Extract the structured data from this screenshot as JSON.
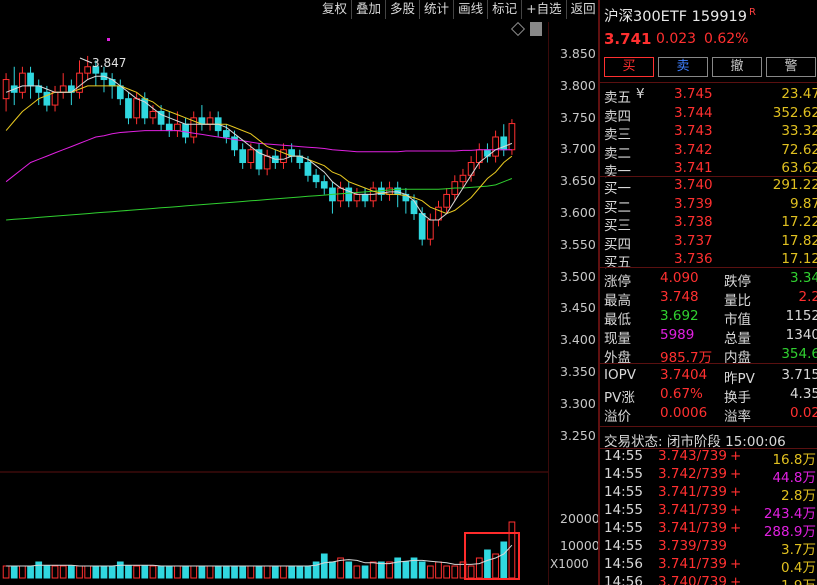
{
  "toolbar": [
    "复权",
    "叠加",
    "多股",
    "统计",
    "画线",
    "标记",
    "+自选",
    "返回"
  ],
  "chart": {
    "max_label": "3.847",
    "y_axis_labels": [
      "3.850",
      "3.800",
      "3.750",
      "3.700",
      "3.650",
      "3.600",
      "3.550",
      "3.500",
      "3.450",
      "3.400",
      "3.350",
      "3.300",
      "3.250"
    ],
    "volume_axis_labels": [
      "20000",
      "10000"
    ],
    "volume_unit": "X1000",
    "colors": {
      "up": "#ff3030",
      "down": "#30d8e0",
      "ma5": "#d8d8d8",
      "ma10": "#e8c820",
      "ma20": "#e020e0",
      "ma60": "#30d030",
      "volma": "#d8d8d8"
    }
  },
  "chart_data": {
    "type": "candlestick",
    "price_range": [
      3.22,
      3.87
    ],
    "candles": [
      [
        3.78,
        3.81,
        3.76,
        3.82
      ],
      [
        3.8,
        3.79,
        3.77,
        3.83
      ],
      [
        3.79,
        3.82,
        3.78,
        3.83
      ],
      [
        3.82,
        3.8,
        3.78,
        3.83
      ],
      [
        3.8,
        3.79,
        3.77,
        3.81
      ],
      [
        3.79,
        3.77,
        3.76,
        3.8
      ],
      [
        3.77,
        3.79,
        3.76,
        3.8
      ],
      [
        3.79,
        3.8,
        3.78,
        3.82
      ],
      [
        3.8,
        3.79,
        3.77,
        3.81
      ],
      [
        3.79,
        3.82,
        3.78,
        3.84
      ],
      [
        3.82,
        3.83,
        3.81,
        3.847
      ],
      [
        3.83,
        3.82,
        3.8,
        3.84
      ],
      [
        3.82,
        3.81,
        3.79,
        3.83
      ],
      [
        3.81,
        3.8,
        3.78,
        3.82
      ],
      [
        3.8,
        3.78,
        3.77,
        3.81
      ],
      [
        3.78,
        3.75,
        3.74,
        3.79
      ],
      [
        3.75,
        3.78,
        3.74,
        3.79
      ],
      [
        3.78,
        3.75,
        3.74,
        3.79
      ],
      [
        3.75,
        3.76,
        3.74,
        3.77
      ],
      [
        3.76,
        3.74,
        3.73,
        3.77
      ],
      [
        3.74,
        3.73,
        3.72,
        3.76
      ],
      [
        3.73,
        3.74,
        3.72,
        3.76
      ],
      [
        3.74,
        3.72,
        3.71,
        3.75
      ],
      [
        3.72,
        3.75,
        3.71,
        3.76
      ],
      [
        3.75,
        3.74,
        3.73,
        3.77
      ],
      [
        3.74,
        3.75,
        3.73,
        3.76
      ],
      [
        3.75,
        3.73,
        3.72,
        3.76
      ],
      [
        3.73,
        3.72,
        3.71,
        3.74
      ],
      [
        3.72,
        3.7,
        3.69,
        3.73
      ],
      [
        3.7,
        3.68,
        3.67,
        3.71
      ],
      [
        3.68,
        3.7,
        3.67,
        3.71
      ],
      [
        3.7,
        3.67,
        3.66,
        3.71
      ],
      [
        3.67,
        3.69,
        3.66,
        3.7
      ],
      [
        3.69,
        3.68,
        3.67,
        3.7
      ],
      [
        3.68,
        3.7,
        3.67,
        3.71
      ],
      [
        3.7,
        3.69,
        3.68,
        3.71
      ],
      [
        3.69,
        3.68,
        3.67,
        3.7
      ],
      [
        3.68,
        3.66,
        3.65,
        3.69
      ],
      [
        3.66,
        3.65,
        3.64,
        3.67
      ],
      [
        3.65,
        3.64,
        3.63,
        3.66
      ],
      [
        3.64,
        3.62,
        3.6,
        3.65
      ],
      [
        3.62,
        3.64,
        3.61,
        3.65
      ],
      [
        3.64,
        3.62,
        3.61,
        3.65
      ],
      [
        3.62,
        3.63,
        3.61,
        3.64
      ],
      [
        3.63,
        3.62,
        3.61,
        3.64
      ],
      [
        3.62,
        3.64,
        3.61,
        3.65
      ],
      [
        3.64,
        3.63,
        3.62,
        3.65
      ],
      [
        3.63,
        3.64,
        3.62,
        3.65
      ],
      [
        3.64,
        3.63,
        3.61,
        3.65
      ],
      [
        3.63,
        3.62,
        3.6,
        3.64
      ],
      [
        3.62,
        3.6,
        3.59,
        3.63
      ],
      [
        3.6,
        3.56,
        3.55,
        3.61
      ],
      [
        3.56,
        3.59,
        3.55,
        3.6
      ],
      [
        3.59,
        3.61,
        3.58,
        3.62
      ],
      [
        3.61,
        3.63,
        3.6,
        3.64
      ],
      [
        3.63,
        3.65,
        3.62,
        3.66
      ],
      [
        3.65,
        3.66,
        3.64,
        3.67
      ],
      [
        3.66,
        3.68,
        3.65,
        3.69
      ],
      [
        3.68,
        3.7,
        3.67,
        3.71
      ],
      [
        3.7,
        3.69,
        3.68,
        3.71
      ],
      [
        3.69,
        3.72,
        3.68,
        3.73
      ],
      [
        3.72,
        3.7,
        3.69,
        3.74
      ],
      [
        3.7,
        3.741,
        3.692,
        3.748
      ]
    ],
    "ma5": [
      3.79,
      3.795,
      3.8,
      3.8,
      3.8,
      3.795,
      3.79,
      3.79,
      3.79,
      3.8,
      3.81,
      3.815,
      3.815,
      3.81,
      3.8,
      3.79,
      3.78,
      3.775,
      3.765,
      3.755,
      3.75,
      3.745,
      3.74,
      3.74,
      3.74,
      3.74,
      3.74,
      3.735,
      3.725,
      3.715,
      3.705,
      3.695,
      3.69,
      3.685,
      3.685,
      3.69,
      3.69,
      3.685,
      3.675,
      3.665,
      3.65,
      3.64,
      3.635,
      3.63,
      3.63,
      3.63,
      3.632,
      3.634,
      3.634,
      3.63,
      3.62,
      3.6,
      3.59,
      3.59,
      3.6,
      3.62,
      3.64,
      3.66,
      3.68,
      3.69,
      3.7,
      3.705,
      3.71
    ],
    "ma10": [
      3.73,
      3.745,
      3.76,
      3.77,
      3.78,
      3.785,
      3.79,
      3.79,
      3.79,
      3.795,
      3.8,
      3.8,
      3.8,
      3.8,
      3.8,
      3.795,
      3.79,
      3.78,
      3.775,
      3.765,
      3.76,
      3.755,
      3.75,
      3.745,
      3.74,
      3.74,
      3.74,
      3.74,
      3.735,
      3.73,
      3.725,
      3.715,
      3.705,
      3.7,
      3.695,
      3.69,
      3.69,
      3.685,
      3.68,
      3.675,
      3.665,
      3.66,
      3.65,
      3.645,
      3.64,
      3.635,
      3.632,
      3.63,
      3.63,
      3.628,
      3.625,
      3.62,
      3.61,
      3.605,
      3.6,
      3.605,
      3.615,
      3.625,
      3.64,
      3.655,
      3.665,
      3.68,
      3.69
    ],
    "ma20": [
      3.65,
      3.66,
      3.67,
      3.68,
      3.685,
      3.69,
      3.695,
      3.7,
      3.705,
      3.71,
      3.715,
      3.72,
      3.722,
      3.725,
      3.727,
      3.728,
      3.729,
      3.73,
      3.73,
      3.73,
      3.73,
      3.73,
      3.728,
      3.726,
      3.724,
      3.722,
      3.72,
      3.718,
      3.716,
      3.714,
      3.712,
      3.71,
      3.709,
      3.708,
      3.707,
      3.706,
      3.705,
      3.704,
      3.703,
      3.702,
      3.7,
      3.699,
      3.698,
      3.697,
      3.697,
      3.697,
      3.697,
      3.697,
      3.697,
      3.698,
      3.698,
      3.698,
      3.698,
      3.698,
      3.698,
      3.698,
      3.699,
      3.699,
      3.7,
      3.7,
      3.7,
      3.7,
      3.7
    ],
    "ma60": [
      3.59,
      3.591,
      3.592,
      3.593,
      3.594,
      3.595,
      3.596,
      3.597,
      3.598,
      3.599,
      3.6,
      3.601,
      3.602,
      3.603,
      3.604,
      3.605,
      3.606,
      3.607,
      3.608,
      3.609,
      3.61,
      3.611,
      3.612,
      3.613,
      3.614,
      3.615,
      3.616,
      3.617,
      3.618,
      3.619,
      3.62,
      3.621,
      3.622,
      3.623,
      3.624,
      3.625,
      3.626,
      3.627,
      3.628,
      3.629,
      3.63,
      3.631,
      3.632,
      3.633,
      3.634,
      3.635,
      3.636,
      3.637,
      3.638,
      3.638,
      3.638,
      3.638,
      3.638,
      3.638,
      3.639,
      3.64,
      3.64,
      3.641,
      3.642,
      3.643,
      3.645,
      3.65,
      3.655
    ],
    "volume": [
      3,
      3,
      3,
      3,
      4,
      3,
      3,
      3,
      3,
      3,
      3,
      3,
      3,
      3,
      4,
      3,
      3,
      3,
      3,
      3,
      3,
      3,
      3,
      3,
      3,
      3,
      3,
      3,
      3,
      3,
      3,
      3,
      3,
      3,
      3,
      3,
      3,
      3,
      4,
      6,
      4,
      5,
      4,
      3,
      3,
      4,
      4,
      4,
      5,
      4,
      5,
      4,
      3,
      4,
      3,
      3,
      4,
      3,
      5,
      7,
      6,
      9,
      14
    ],
    "volume_max": 25
  },
  "panel": {
    "title": "沪深300ETF 159919",
    "badge": "R",
    "price": "3.741",
    "change": "0.023",
    "change_pct": "0.62%",
    "buttons": [
      "买",
      "卖",
      "撤",
      "警"
    ],
    "asks": [
      {
        "label": "卖五",
        "yen": "¥",
        "price": "3.745",
        "vol": "23.47"
      },
      {
        "label": "卖四",
        "yen": "",
        "price": "3.744",
        "vol": "352.62"
      },
      {
        "label": "卖三",
        "yen": "",
        "price": "3.743",
        "vol": "33.32"
      },
      {
        "label": "卖二",
        "yen": "",
        "price": "3.742",
        "vol": "72.62"
      },
      {
        "label": "卖一",
        "yen": "",
        "price": "3.741",
        "vol": "63.62"
      }
    ],
    "bids": [
      {
        "label": "买一",
        "price": "3.740",
        "vol": "291.22"
      },
      {
        "label": "买二",
        "price": "3.739",
        "vol": "9.87"
      },
      {
        "label": "买三",
        "price": "3.738",
        "vol": "17.22"
      },
      {
        "label": "买四",
        "price": "3.737",
        "vol": "17.82"
      },
      {
        "label": "买五",
        "price": "3.736",
        "vol": "17.12"
      }
    ],
    "stats": [
      {
        "l1": "涨停",
        "v1": "4.090",
        "c1": "red",
        "l2": "跌停",
        "v2": "3.34",
        "c2": "green"
      },
      {
        "l1": "最高",
        "v1": "3.748",
        "c1": "red",
        "l2": "量比",
        "v2": "2.2",
        "c2": "red"
      },
      {
        "l1": "最低",
        "v1": "3.692",
        "c1": "green",
        "l2": "市值",
        "v2": "1152",
        "c2": "white"
      },
      {
        "l1": "现量",
        "v1": "5989",
        "c1": "magenta",
        "l2": "总量",
        "v2": "1340",
        "c2": "white"
      },
      {
        "l1": "外盘",
        "v1": "985.7万",
        "c1": "red",
        "l2": "内盘",
        "v2": "354.6",
        "c2": "green"
      }
    ],
    "stats2": [
      {
        "l1": "IOPV",
        "v1": "3.7404",
        "c1": "red",
        "l2": "昨PV",
        "v2": "3.715",
        "c2": "white"
      },
      {
        "l1": "PV涨",
        "v1": "0.67%",
        "c1": "red",
        "l2": "换手",
        "v2": "4.35",
        "c2": "white"
      },
      {
        "l1": "溢价",
        "v1": "0.0006",
        "c1": "red",
        "l2": "溢率",
        "v2": "0.02",
        "c2": "red"
      }
    ],
    "trade_state": "交易状态: 闭市阶段 15:00:06",
    "ticks": [
      {
        "time": "14:55",
        "price": "3.743/739",
        "flag": "+",
        "vol": "16.8万",
        "vc": "yellow"
      },
      {
        "time": "14:55",
        "price": "3.742/739",
        "flag": "+",
        "vol": "44.8万",
        "vc": "magenta"
      },
      {
        "time": "14:55",
        "price": "3.741/739",
        "flag": "+",
        "vol": "2.8万",
        "vc": "yellow"
      },
      {
        "time": "14:55",
        "price": "3.741/739",
        "flag": "+",
        "vol": "243.4万",
        "vc": "magenta"
      },
      {
        "time": "14:55",
        "price": "3.741/739",
        "flag": "+",
        "vol": "288.9万",
        "vc": "magenta"
      },
      {
        "time": "14:55",
        "price": "3.739/739",
        "flag": "",
        "vol": "3.7万",
        "vc": "yellow"
      },
      {
        "time": "14:56",
        "price": "3.741/739",
        "flag": "+",
        "vol": "0.4万",
        "vc": "yellow"
      },
      {
        "time": "14:56",
        "price": "3.740/739",
        "flag": "+",
        "vol": "1.9万",
        "vc": "yellow"
      }
    ]
  }
}
